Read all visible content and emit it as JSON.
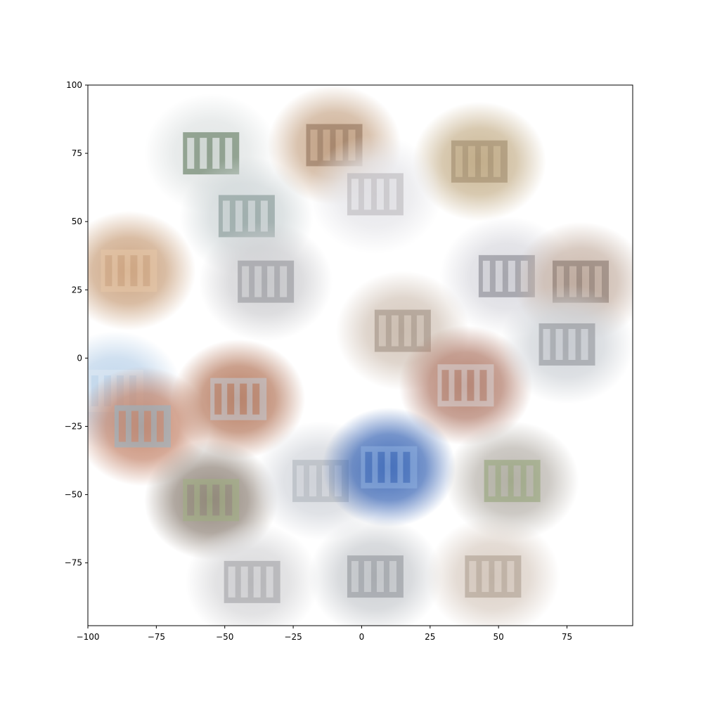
{
  "chart_data": {
    "type": "scatter",
    "subtype": "image-collage",
    "title": "",
    "xlabel": "",
    "ylabel": "",
    "xlim": [
      -100,
      99
    ],
    "ylim": [
      -98,
      100
    ],
    "xticks": [
      -100,
      -75,
      -50,
      -25,
      0,
      25,
      50,
      75
    ],
    "xtick_labels": [
      "−100",
      "−75",
      "−50",
      "−25",
      "0",
      "25",
      "50",
      "75"
    ],
    "yticks": [
      100,
      75,
      50,
      25,
      0,
      -25,
      -50,
      -75
    ],
    "ytick_labels": [
      "100",
      "75",
      "50",
      "25",
      "0",
      "−25",
      "−50",
      "−75"
    ],
    "grid": false,
    "legend": "none",
    "series": [
      {
        "points": [
          {
            "x": -55,
            "y": 75,
            "kind": "trees-sky",
            "colors": [
              "#dfe3e3",
              "#4f6b4c"
            ]
          },
          {
            "x": -42,
            "y": 52,
            "kind": "pool-terrace",
            "colors": [
              "#cfd6d8",
              "#7a8f8c"
            ]
          },
          {
            "x": -10,
            "y": 78,
            "kind": "wooden-cabin",
            "colors": [
              "#c9a98c",
              "#8a6a52"
            ]
          },
          {
            "x": 43,
            "y": 72,
            "kind": "stone-block-facade",
            "colors": [
              "#c7b28e",
              "#9a8566"
            ]
          },
          {
            "x": -85,
            "y": 32,
            "kind": "wood-vault-interior",
            "colors": [
              "#c9a07c",
              "#e8c8a8"
            ]
          },
          {
            "x": -35,
            "y": 28,
            "kind": "slat-facade-figure",
            "colors": [
              "#cfcfd2",
              "#8e8f95"
            ]
          },
          {
            "x": 5,
            "y": 60,
            "kind": "glass-pavilion",
            "colors": [
              "#e6e6ea",
              "#b7b4b8"
            ]
          },
          {
            "x": 53,
            "y": 30,
            "kind": "white-building",
            "colors": [
              "#d9d9df",
              "#7d7d86"
            ]
          },
          {
            "x": 80,
            "y": 28,
            "kind": "brick-tower",
            "colors": [
              "#c7b3a6",
              "#7f6e65"
            ]
          },
          {
            "x": 15,
            "y": 10,
            "kind": "concrete-stairs",
            "colors": [
              "#d2c4b8",
              "#9a8a7c"
            ]
          },
          {
            "x": -90,
            "y": -12,
            "kind": "blue-sky-halo",
            "colors": [
              "#bcd3ea",
              "#dfe9f3"
            ]
          },
          {
            "x": -80,
            "y": -25,
            "kind": "brick-house",
            "colors": [
              "#c4856b",
              "#93b6c8"
            ]
          },
          {
            "x": -45,
            "y": -15,
            "kind": "brick-highrise",
            "colors": [
              "#b5785c",
              "#c0cbd6"
            ]
          },
          {
            "x": 38,
            "y": -10,
            "kind": "brick-chimney",
            "colors": [
              "#b07a68",
              "#d8d4d6"
            ]
          },
          {
            "x": 75,
            "y": 5,
            "kind": "glass-roof-atrium",
            "colors": [
              "#cfd3d8",
              "#8b8e94"
            ]
          },
          {
            "x": -55,
            "y": -52,
            "kind": "timber-bridge",
            "colors": [
              "#8f8378",
              "#9fb080"
            ]
          },
          {
            "x": -15,
            "y": -45,
            "kind": "shelving-interior",
            "colors": [
              "#d3d6dc",
              "#aab0b8"
            ]
          },
          {
            "x": 10,
            "y": -40,
            "kind": "blue-glass-chapel",
            "colors": [
              "#3a66b5",
              "#8fb0e0"
            ]
          },
          {
            "x": 55,
            "y": -45,
            "kind": "curved-roof-garden",
            "colors": [
              "#b8b3ac",
              "#8ea070"
            ]
          },
          {
            "x": -40,
            "y": -82,
            "kind": "white-gabled-houses",
            "colors": [
              "#d7d7d9",
              "#9c9ca0"
            ]
          },
          {
            "x": 5,
            "y": -80,
            "kind": "corridor-perspective",
            "colors": [
              "#c9ccd0",
              "#8c9096"
            ]
          },
          {
            "x": 48,
            "y": -80,
            "kind": "timber-frame-hall",
            "colors": [
              "#d9cdc3",
              "#a8998a"
            ]
          }
        ]
      }
    ]
  }
}
